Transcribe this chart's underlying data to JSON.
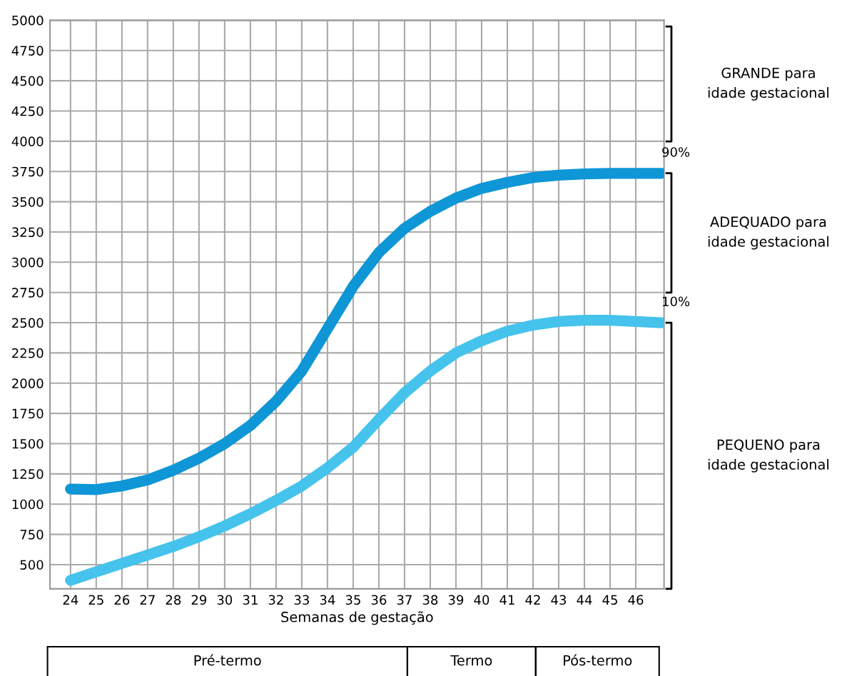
{
  "chart_data": {
    "type": "line",
    "xlabel": "Semanas de gestação",
    "x": [
      24,
      25,
      26,
      27,
      28,
      29,
      30,
      31,
      32,
      33,
      34,
      35,
      36,
      37,
      38,
      39,
      40,
      41,
      42,
      43,
      44,
      45,
      46,
      47
    ],
    "series": [
      {
        "name": "90%",
        "color": "#0e96d6",
        "values": [
          1125,
          1120,
          1150,
          1200,
          1280,
          1380,
          1500,
          1650,
          1850,
          2100,
          2450,
          2800,
          3080,
          3280,
          3420,
          3530,
          3610,
          3660,
          3700,
          3720,
          3730,
          3735,
          3735,
          3735
        ]
      },
      {
        "name": "10%",
        "color": "#45c3ec",
        "values": [
          370,
          440,
          510,
          580,
          650,
          730,
          820,
          920,
          1030,
          1150,
          1300,
          1470,
          1700,
          1920,
          2100,
          2250,
          2350,
          2430,
          2480,
          2510,
          2520,
          2520,
          2510,
          2500
        ]
      }
    ],
    "xlim": [
      23.2,
      47.1
    ],
    "ylim": [
      300,
      5000
    ],
    "xticks": [
      24,
      25,
      26,
      27,
      28,
      29,
      30,
      31,
      32,
      33,
      34,
      35,
      36,
      37,
      38,
      39,
      40,
      41,
      42,
      43,
      44,
      45,
      46
    ],
    "yticks": [
      500,
      750,
      1000,
      1250,
      1500,
      1750,
      2000,
      2250,
      2500,
      2750,
      3000,
      3250,
      3500,
      3750,
      4000,
      4250,
      4500,
      4750,
      5000
    ],
    "grid": true,
    "line_style": "solid",
    "marker": "none",
    "annotations": [
      "GRANDE para\nidade gestacional",
      "ADEQUADO para\nidade gestacional",
      "PEQUENO para\nidade gestacional",
      "Pré-termo",
      "Termo",
      "Pós-termo"
    ]
  }
}
